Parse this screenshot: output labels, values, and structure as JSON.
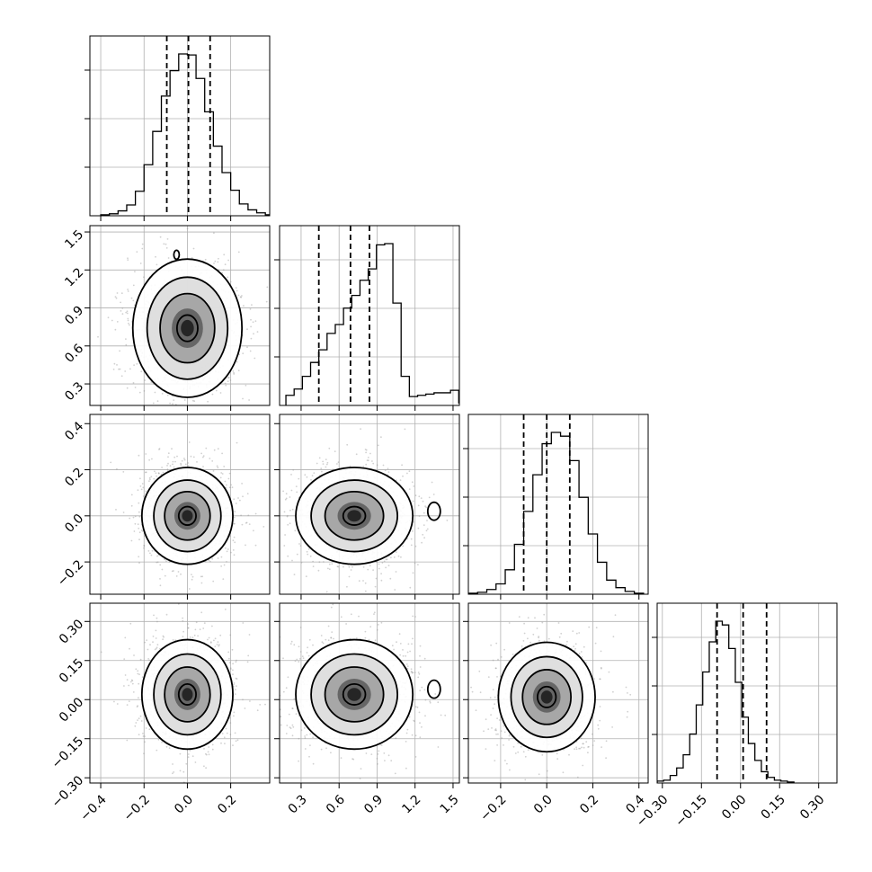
{
  "chart_data": {
    "type": "corner",
    "grid": true,
    "parameters": [
      {
        "index": 0,
        "range": [
          -0.45,
          0.38
        ],
        "ticks": [
          "−0.4",
          "−0.2",
          "0.0",
          "0.2"
        ],
        "tick_values": [
          -0.4,
          -0.2,
          0.0,
          0.2
        ],
        "quantiles": [
          -0.095,
          0.005,
          0.105
        ],
        "histogram": {
          "bin_edges_start": -0.4,
          "bin_width": 0.04,
          "counts": [
            1,
            2,
            5,
            11,
            25,
            52,
            86,
            122,
            148,
            165,
            164,
            140,
            106,
            71,
            44,
            26,
            12,
            6,
            3,
            1
          ]
        }
      },
      {
        "index": 1,
        "range": [
          0.13,
          1.55
        ],
        "ticks": [
          "0.3",
          "0.6",
          "0.9",
          "1.2",
          "1.5"
        ],
        "tick_values": [
          0.3,
          0.6,
          0.9,
          1.2,
          1.5
        ],
        "quantiles": [
          0.44,
          0.69,
          0.84
        ],
        "histogram": {
          "bin_edges_start": 0.18,
          "bin_width": 0.065,
          "counts": [
            8,
            13,
            23,
            34,
            44,
            57,
            64,
            77,
            87,
            99,
            108,
            127,
            128,
            81,
            23,
            7,
            8,
            9,
            10,
            10,
            12,
            2
          ]
        }
      },
      {
        "index": 2,
        "range": [
          -0.34,
          0.44
        ],
        "ticks": [
          "−0.2",
          "0.0",
          "0.2",
          "0.4"
        ],
        "tick_values": [
          -0.2,
          0.0,
          0.2,
          0.4
        ],
        "quantiles": [
          -0.1,
          0.0,
          0.1
        ],
        "histogram": {
          "bin_edges_start": -0.34,
          "bin_width": 0.04,
          "counts": [
            1,
            2,
            5,
            11,
            26,
            53,
            88,
            127,
            160,
            172,
            168,
            142,
            103,
            64,
            34,
            15,
            7,
            3,
            1
          ]
        }
      },
      {
        "index": 3,
        "range": [
          -0.32,
          0.37
        ],
        "ticks": [
          "−0.30",
          "−0.15",
          "0.00",
          "0.15",
          "0.30"
        ],
        "tick_values": [
          -0.3,
          -0.15,
          0.0,
          0.15,
          0.3
        ],
        "quantiles": [
          -0.09,
          0.01,
          0.1
        ],
        "histogram": {
          "bin_edges_start": -0.32,
          "bin_width": 0.025,
          "counts": [
            2,
            3,
            8,
            16,
            30,
            52,
            83,
            118,
            150,
            172,
            168,
            143,
            107,
            70,
            42,
            24,
            12,
            6,
            3,
            2,
            1
          ]
        }
      }
    ],
    "pair_plots": [
      {
        "x_param": 0,
        "y_param": 1,
        "center": [
          0.0,
          0.74
        ],
        "spread": [
          0.12,
          0.26
        ]
      },
      {
        "x_param": 0,
        "y_param": 2,
        "center": [
          0.0,
          0.0
        ],
        "spread": [
          0.1,
          0.1
        ]
      },
      {
        "x_param": 1,
        "y_param": 2,
        "center": [
          0.72,
          0.0
        ],
        "spread": [
          0.22,
          0.1
        ]
      },
      {
        "x_param": 0,
        "y_param": 3,
        "center": [
          0.0,
          0.02
        ],
        "spread": [
          0.1,
          0.1
        ]
      },
      {
        "x_param": 1,
        "y_param": 3,
        "center": [
          0.72,
          0.02
        ],
        "spread": [
          0.22,
          0.1
        ]
      },
      {
        "x_param": 2,
        "y_param": 3,
        "center": [
          0.0,
          0.01
        ],
        "spread": [
          0.1,
          0.1
        ]
      }
    ]
  }
}
